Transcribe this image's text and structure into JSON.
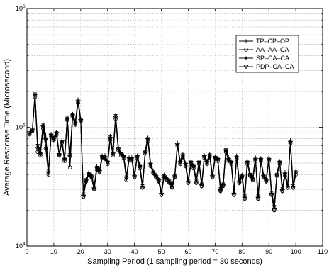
{
  "chart_data": {
    "type": "line",
    "title": "",
    "xlabel": "Sampling Period (1 sampling period = 30 seconds)",
    "ylabel": "Average Response Time (Microsecond)",
    "xlim": [
      0,
      110
    ],
    "ylim": [
      10000,
      1000000
    ],
    "yscale": "log",
    "grid": true,
    "legend_position": "top-right",
    "x_ticks": [
      "0",
      "10",
      "20",
      "30",
      "40",
      "50",
      "60",
      "70",
      "80",
      "90",
      "100",
      "110"
    ],
    "x_tick_values": [
      0,
      10,
      20,
      30,
      40,
      50,
      60,
      70,
      80,
      90,
      100,
      110
    ],
    "y_ticks": [
      {
        "value": 10000,
        "base": "10",
        "exp": "4"
      },
      {
        "value": 100000,
        "base": "10",
        "exp": "5"
      },
      {
        "value": 1000000,
        "base": "10",
        "exp": "6"
      }
    ],
    "x": [
      1,
      2,
      3,
      4,
      5,
      6,
      7,
      8,
      9,
      10,
      11,
      12,
      13,
      14,
      15,
      16,
      17,
      18,
      19,
      20,
      21,
      22,
      23,
      24,
      25,
      26,
      27,
      28,
      29,
      30,
      31,
      32,
      33,
      34,
      35,
      36,
      37,
      38,
      39,
      40,
      41,
      42,
      43,
      44,
      45,
      46,
      47,
      48,
      49,
      50,
      51,
      52,
      53,
      54,
      55,
      56,
      57,
      58,
      59,
      60,
      61,
      62,
      63,
      64,
      65,
      66,
      67,
      68,
      69,
      70,
      71,
      72,
      73,
      74,
      75,
      76,
      77,
      78,
      79,
      80,
      81,
      82,
      83,
      84,
      85,
      86,
      87,
      88,
      89,
      90,
      91,
      92,
      93,
      94,
      95,
      96,
      97,
      98,
      99,
      100
    ],
    "series": [
      {
        "name": "TP–CP–OP",
        "marker": "plus",
        "values": [
          90000,
          95000,
          195000,
          72000,
          62000,
          108000,
          86000,
          44000,
          88000,
          82000,
          92000,
          60000,
          78000,
          55000,
          122000,
          60000,
          130000,
          112000,
          172000,
          118000,
          28000,
          37000,
          42000,
          40000,
          32000,
          47000,
          44000,
          58000,
          58000,
          52000,
          85000,
          62000,
          128000,
          68000,
          61000,
          58000,
          39000,
          56000,
          56000,
          40000,
          58000,
          48000,
          33000,
          64000,
          82000,
          50000,
          43000,
          40000,
          37000,
          29000,
          40000,
          38000,
          36000,
          33000,
          40000,
          74000,
          52000,
          60000,
          50000,
          36000,
          52000,
          48000,
          36000,
          52000,
          34000,
          58000,
          52000,
          60000,
          40000,
          57000,
          55000,
          31000,
          34000,
          66000,
          56000,
          52000,
          29000,
          58000,
          36000,
          40000,
          27000,
          52000,
          41000,
          38000,
          56000,
          27000,
          55000,
          40000,
          37000,
          56000,
          29000,
          22000,
          41000,
          52000,
          31000,
          42000,
          33000,
          78000,
          33000,
          43000
        ]
      },
      {
        "name": "AA–AA–CA",
        "marker": "circle",
        "values": [
          87000,
          93000,
          180000,
          62000,
          58000,
          98000,
          66000,
          40000,
          84000,
          78000,
          86000,
          58000,
          74000,
          52000,
          115000,
          46000,
          122000,
          105000,
          160000,
          112000,
          26000,
          35000,
          40000,
          38000,
          30000,
          44000,
          42000,
          55000,
          54000,
          49000,
          78000,
          58000,
          118000,
          64000,
          58000,
          55000,
          36000,
          53000,
          53000,
          38000,
          55000,
          45000,
          31000,
          60000,
          76000,
          47000,
          41000,
          38000,
          35000,
          27000,
          38000,
          36000,
          34000,
          31000,
          38000,
          70000,
          49000,
          56000,
          47000,
          34000,
          49000,
          45000,
          34000,
          49000,
          32000,
          55000,
          49000,
          56000,
          38000,
          54000,
          52000,
          29000,
          32000,
          62000,
          52000,
          49000,
          27000,
          54000,
          34000,
          38000,
          25000,
          49000,
          39000,
          36000,
          52000,
          25000,
          52000,
          38000,
          35000,
          52000,
          27000,
          20000,
          39000,
          49000,
          29000,
          39000,
          31000,
          73000,
          31000,
          40000
        ]
      },
      {
        "name": "SP–CA–CA",
        "marker": "star",
        "values": [
          88000,
          94000,
          188000,
          68000,
          60000,
          104000,
          80000,
          42000,
          86000,
          80000,
          90000,
          59000,
          76000,
          54000,
          118000,
          58000,
          126000,
          108000,
          166000,
          115000,
          27000,
          36000,
          41000,
          39000,
          31000,
          46000,
          43000,
          57000,
          56000,
          51000,
          82000,
          60000,
          124000,
          66000,
          60000,
          57000,
          38000,
          55000,
          55000,
          39000,
          57000,
          47000,
          32000,
          62000,
          80000,
          49000,
          42000,
          39000,
          36000,
          28000,
          39000,
          37000,
          35000,
          32000,
          39000,
          72000,
          51000,
          58000,
          49000,
          35000,
          51000,
          47000,
          35000,
          51000,
          33000,
          57000,
          51000,
          58000,
          39000,
          56000,
          54000,
          30000,
          33000,
          64000,
          54000,
          51000,
          28000,
          56000,
          35000,
          39000,
          26000,
          51000,
          40000,
          37000,
          54000,
          26000,
          54000,
          39000,
          36000,
          54000,
          28000,
          21000,
          40000,
          51000,
          30000,
          41000,
          32000,
          76000,
          32000,
          42000
        ]
      },
      {
        "name": "PDP–CA–CA",
        "marker": "triangle",
        "values": [
          89000,
          94000,
          184000,
          66000,
          59000,
          100000,
          78000,
          41000,
          85000,
          79000,
          88000,
          58000,
          75000,
          53000,
          116000,
          56000,
          124000,
          106000,
          163000,
          113000,
          26000,
          35000,
          40000,
          38000,
          30000,
          45000,
          42000,
          56000,
          55000,
          50000,
          80000,
          59000,
          120000,
          65000,
          59000,
          56000,
          37000,
          54000,
          54000,
          38000,
          56000,
          46000,
          31000,
          61000,
          78000,
          48000,
          41000,
          38000,
          35000,
          27000,
          38000,
          36000,
          34000,
          31000,
          38000,
          71000,
          50000,
          57000,
          48000,
          34000,
          50000,
          46000,
          34000,
          50000,
          32000,
          56000,
          50000,
          57000,
          38000,
          55000,
          53000,
          29000,
          32000,
          63000,
          53000,
          50000,
          27000,
          55000,
          34000,
          38000,
          25000,
          50000,
          39000,
          36000,
          53000,
          25000,
          53000,
          38000,
          35000,
          53000,
          27000,
          20000,
          39000,
          50000,
          29000,
          40000,
          31000,
          74000,
          31000,
          41000
        ]
      }
    ]
  }
}
